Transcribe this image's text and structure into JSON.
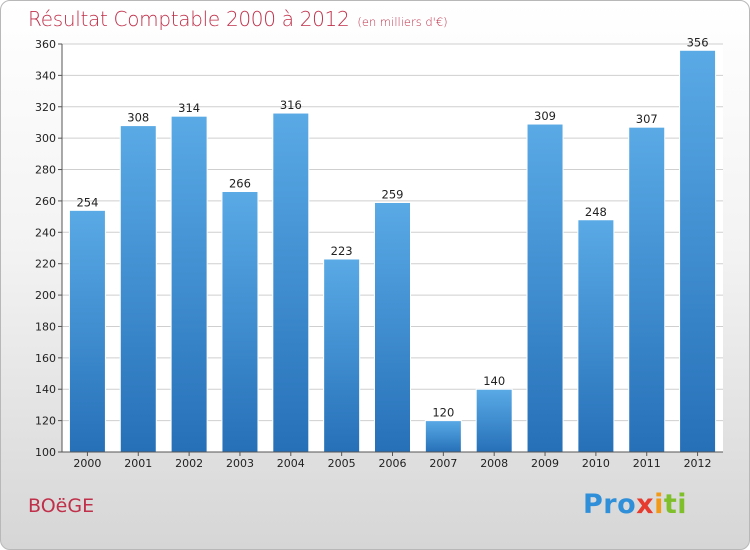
{
  "title": "Résultat Comptable 2000 à 2012",
  "subtitle": "(en milliers d'€)",
  "place": "BOëGE",
  "logo": {
    "p1": "Pro",
    "p2": "x",
    "p3": "i",
    "p4": "ti"
  },
  "colors": {
    "bar_top": "#5aaae6",
    "bar_bottom": "#2670b8",
    "title": "#c0304a"
  },
  "chart_data": {
    "type": "bar",
    "title": "Résultat Comptable 2000 à 2012",
    "subtitle": "(en milliers d'€)",
    "categories": [
      "2000",
      "2001",
      "2002",
      "2003",
      "2004",
      "2005",
      "2006",
      "2007",
      "2008",
      "2009",
      "2010",
      "2011",
      "2012"
    ],
    "values": [
      254,
      308,
      314,
      266,
      316,
      223,
      259,
      120,
      140,
      309,
      248,
      307,
      356
    ],
    "ylim": [
      100,
      360
    ],
    "yticks": [
      100,
      120,
      140,
      160,
      180,
      200,
      220,
      240,
      260,
      280,
      300,
      320,
      340,
      360
    ],
    "grid": true
  }
}
